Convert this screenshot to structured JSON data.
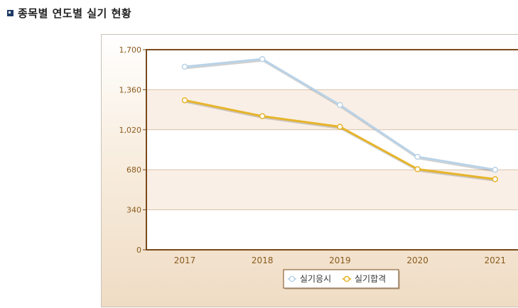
{
  "page": {
    "section_title": "종목별 연도별 실기 현황"
  },
  "colors": {
    "series_1": "#b9d3e8",
    "series_2": "#e6b42a",
    "axis": "#7a4a1a",
    "tick_text": "#8a5a1e",
    "band_fill": "#f9efe6",
    "grid": "#d8c2a8"
  },
  "chart_data": {
    "type": "line",
    "title": "",
    "xlabel": "",
    "ylabel": "",
    "categories": [
      "2017",
      "2018",
      "2019",
      "2020",
      "2021"
    ],
    "y_ticks": [
      "0",
      "340",
      "680",
      "1,020",
      "1,360",
      "1,700"
    ],
    "ylim": [
      0,
      1700
    ],
    "grid": true,
    "legend_position": "bottom",
    "series": [
      {
        "name": "실기응시",
        "values": [
          1555,
          1620,
          1230,
          790,
          680
        ]
      },
      {
        "name": "실기합격",
        "values": [
          1270,
          1135,
          1045,
          685,
          600
        ]
      }
    ]
  }
}
